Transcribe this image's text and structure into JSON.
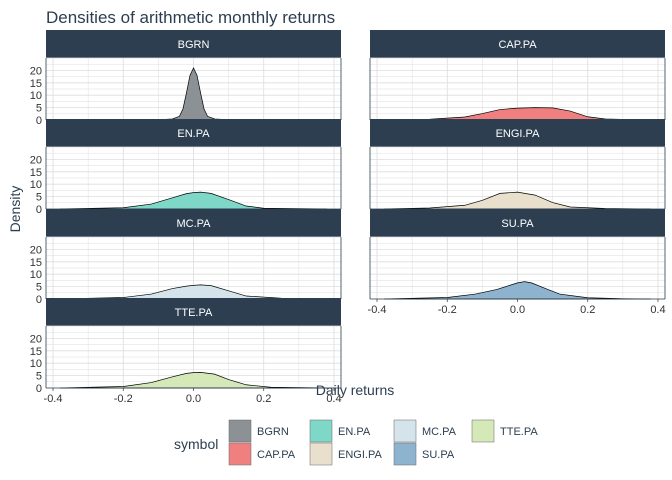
{
  "chart_data": {
    "type": "area",
    "title": "Densities of arithmetic monthly returns",
    "xlabel": "Daily returns",
    "ylabel": "Density",
    "xlim": [
      -0.42,
      0.42
    ],
    "ylim": [
      0,
      25
    ],
    "x_ticks": [
      "-0.4",
      "-0.2",
      "0.0",
      "0.2",
      "0.4"
    ],
    "y_ticks": [
      "0",
      "5",
      "10",
      "15",
      "20"
    ],
    "grid": true,
    "legend_position": "bottom",
    "legend_title": "symbol",
    "series": [
      {
        "name": "BGRN",
        "color": "#8c9196",
        "x": [
          -0.38,
          -0.1,
          -0.06,
          -0.04,
          -0.03,
          -0.02,
          -0.01,
          0.0,
          0.01,
          0.02,
          0.03,
          0.04,
          0.06,
          0.1,
          0.38
        ],
        "y": [
          0,
          0.1,
          0.4,
          1.5,
          4.5,
          11,
          18,
          21,
          18,
          11,
          4.5,
          1.5,
          0.4,
          0.1,
          0
        ]
      },
      {
        "name": "CAP.PA",
        "color": "#f08080",
        "x": [
          -0.38,
          -0.25,
          -0.15,
          -0.1,
          -0.05,
          0.0,
          0.05,
          0.1,
          0.15,
          0.2,
          0.25,
          0.38
        ],
        "y": [
          0,
          0.3,
          1.2,
          2.6,
          4.2,
          4.8,
          5.0,
          4.9,
          3.6,
          1.3,
          0.4,
          0
        ]
      },
      {
        "name": "EN.PA",
        "color": "#7fd8c7",
        "x": [
          -0.38,
          -0.2,
          -0.12,
          -0.06,
          -0.02,
          0.0,
          0.02,
          0.05,
          0.1,
          0.15,
          0.2,
          0.38
        ],
        "y": [
          0,
          0.5,
          2.0,
          4.5,
          6.2,
          6.6,
          6.8,
          6.3,
          3.8,
          1.2,
          0.3,
          0
        ]
      },
      {
        "name": "ENGI.PA",
        "color": "#e8e0cd",
        "x": [
          -0.38,
          -0.25,
          -0.15,
          -0.1,
          -0.05,
          0.0,
          0.05,
          0.1,
          0.15,
          0.25,
          0.38
        ],
        "y": [
          0,
          0.4,
          1.5,
          3.5,
          6.3,
          6.8,
          5.6,
          2.6,
          0.8,
          0.2,
          0
        ]
      },
      {
        "name": "MC.PA",
        "color": "#d4e4ea",
        "x": [
          -0.38,
          -0.2,
          -0.12,
          -0.06,
          -0.02,
          0.0,
          0.02,
          0.05,
          0.1,
          0.15,
          0.25,
          0.38
        ],
        "y": [
          0,
          0.6,
          2.0,
          4.2,
          5.2,
          5.5,
          5.7,
          5.4,
          3.3,
          1.2,
          0.3,
          0
        ]
      },
      {
        "name": "SU.PA",
        "color": "#8eb3cf",
        "x": [
          -0.38,
          -0.2,
          -0.12,
          -0.06,
          0.0,
          0.02,
          0.04,
          0.08,
          0.12,
          0.2,
          0.3,
          0.38
        ],
        "y": [
          0,
          0.6,
          2.0,
          3.8,
          6.5,
          7.0,
          6.5,
          4.2,
          2.0,
          0.5,
          0.1,
          0
        ]
      },
      {
        "name": "TTE.PA",
        "color": "#d5e8b8",
        "x": [
          -0.38,
          -0.2,
          -0.12,
          -0.06,
          -0.02,
          0.0,
          0.02,
          0.06,
          0.1,
          0.15,
          0.22,
          0.38
        ],
        "y": [
          0,
          0.6,
          2.2,
          4.5,
          5.9,
          6.2,
          6.3,
          5.6,
          3.4,
          1.3,
          0.3,
          0
        ]
      }
    ]
  }
}
